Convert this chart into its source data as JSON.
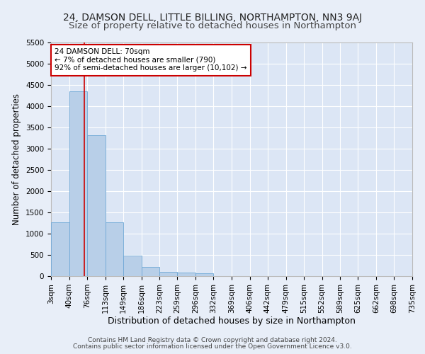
{
  "title": "24, DAMSON DELL, LITTLE BILLING, NORTHAMPTON, NN3 9AJ",
  "subtitle": "Size of property relative to detached houses in Northampton",
  "xlabel": "Distribution of detached houses by size in Northampton",
  "ylabel": "Number of detached properties",
  "bin_edges": [
    3,
    40,
    76,
    113,
    149,
    186,
    223,
    259,
    296,
    332,
    369,
    406,
    442,
    479,
    515,
    552,
    589,
    625,
    662,
    698,
    735
  ],
  "bin_labels": [
    "3sqm",
    "40sqm",
    "76sqm",
    "113sqm",
    "149sqm",
    "186sqm",
    "223sqm",
    "259sqm",
    "296sqm",
    "332sqm",
    "369sqm",
    "406sqm",
    "442sqm",
    "479sqm",
    "515sqm",
    "552sqm",
    "589sqm",
    "625sqm",
    "662sqm",
    "698sqm",
    "735sqm"
  ],
  "bar_heights": [
    1270,
    4350,
    3310,
    1265,
    490,
    215,
    95,
    80,
    60,
    0,
    0,
    0,
    0,
    0,
    0,
    0,
    0,
    0,
    0,
    0
  ],
  "bar_color": "#b8cfe8",
  "bar_edge_color": "#6fa8d6",
  "background_color": "#dce6f5",
  "fig_background_color": "#e8eef8",
  "grid_color": "#ffffff",
  "property_size": 70,
  "marker_line_color": "#cc0000",
  "annotation_line1": "24 DAMSON DELL: 70sqm",
  "annotation_line2": "← 7% of detached houses are smaller (790)",
  "annotation_line3": "92% of semi-detached houses are larger (10,102) →",
  "annotation_box_color": "#ffffff",
  "annotation_box_edge": "#cc0000",
  "ylim": [
    0,
    5500
  ],
  "yticks": [
    0,
    500,
    1000,
    1500,
    2000,
    2500,
    3000,
    3500,
    4000,
    4500,
    5000,
    5500
  ],
  "footnote1": "Contains HM Land Registry data © Crown copyright and database right 2024.",
  "footnote2": "Contains public sector information licensed under the Open Government Licence v3.0.",
  "title_fontsize": 10,
  "subtitle_fontsize": 9.5,
  "xlabel_fontsize": 9,
  "ylabel_fontsize": 8.5,
  "tick_fontsize": 7.5,
  "annotation_fontsize": 7.5,
  "footnote_fontsize": 6.5
}
